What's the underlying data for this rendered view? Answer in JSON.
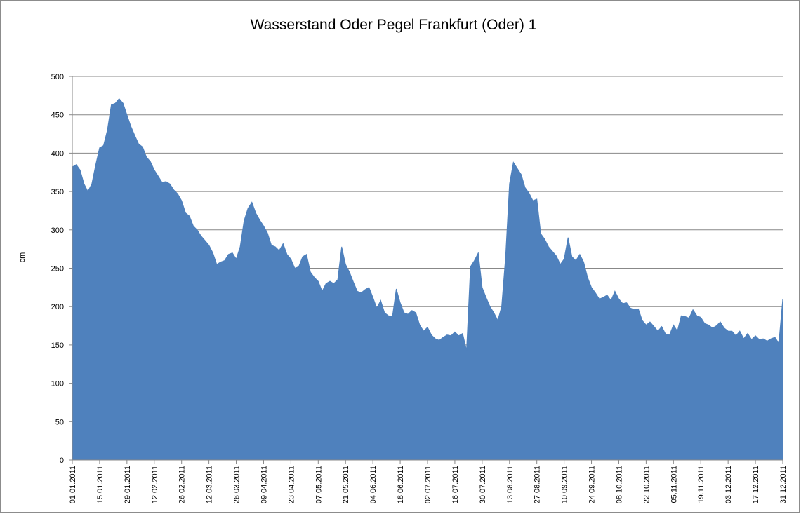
{
  "chart_data": {
    "type": "area",
    "title": "Wasserstand Oder Pegel Frankfurt (Oder) 1",
    "xlabel": "",
    "ylabel": "cm",
    "ylim": [
      0,
      500
    ],
    "yticks": [
      "0",
      "50",
      "100",
      "150",
      "200",
      "250",
      "300",
      "350",
      "400",
      "450",
      "500"
    ],
    "xlim": [
      "01.01.2011",
      "31.12.2011"
    ],
    "x_tick_labels": [
      "01.01.2011",
      "15.01.2011",
      "29.01.2011",
      "12.02.2011",
      "26.02.2011",
      "12.03.2011",
      "26.03.2011",
      "09.04.2011",
      "23.04.2011",
      "07.05.2011",
      "21.05.2011",
      "04.06.2011",
      "18.06.2011",
      "02.07.2011",
      "16.07.2011",
      "30.07.2011",
      "13.08.2011",
      "27.08.2011",
      "10.09.2011",
      "24.09.2011",
      "08.10.2011",
      "22.10.2011",
      "05.11.2011",
      "19.11.2011",
      "03.12.2011",
      "17.12.2011",
      "31.12.2011"
    ],
    "grid": "horizontal",
    "fill_color": "#4f81bd",
    "series": [
      {
        "points": [
          [
            "01.01.2011",
            382
          ],
          [
            "03.01.2011",
            385
          ],
          [
            "05.01.2011",
            378
          ],
          [
            "07.01.2011",
            360
          ],
          [
            "09.01.2011",
            350
          ],
          [
            "11.01.2011",
            360
          ],
          [
            "13.01.2011",
            385
          ],
          [
            "15.01.2011",
            407
          ],
          [
            "17.01.2011",
            410
          ],
          [
            "19.01.2011",
            430
          ],
          [
            "21.01.2011",
            463
          ],
          [
            "23.01.2011",
            465
          ],
          [
            "25.01.2011",
            471
          ],
          [
            "27.01.2011",
            465
          ],
          [
            "29.01.2011",
            450
          ],
          [
            "31.01.2011",
            435
          ],
          [
            "02.02.2011",
            423
          ],
          [
            "04.02.2011",
            412
          ],
          [
            "06.02.2011",
            408
          ],
          [
            "08.02.2011",
            395
          ],
          [
            "10.02.2011",
            389
          ],
          [
            "12.02.2011",
            378
          ],
          [
            "14.02.2011",
            370
          ],
          [
            "16.02.2011",
            362
          ],
          [
            "18.02.2011",
            363
          ],
          [
            "20.02.2011",
            360
          ],
          [
            "22.02.2011",
            352
          ],
          [
            "24.02.2011",
            347
          ],
          [
            "26.02.2011",
            338
          ],
          [
            "28.02.2011",
            322
          ],
          [
            "02.03.2011",
            318
          ],
          [
            "04.03.2011",
            305
          ],
          [
            "06.03.2011",
            300
          ],
          [
            "08.03.2011",
            292
          ],
          [
            "10.03.2011",
            286
          ],
          [
            "12.03.2011",
            280
          ],
          [
            "14.03.2011",
            270
          ],
          [
            "16.03.2011",
            255
          ],
          [
            "18.03.2011",
            258
          ],
          [
            "20.03.2011",
            260
          ],
          [
            "22.03.2011",
            268
          ],
          [
            "24.03.2011",
            270
          ],
          [
            "26.03.2011",
            262
          ],
          [
            "28.03.2011",
            278
          ],
          [
            "30.03.2011",
            312
          ],
          [
            "01.04.2011",
            328
          ],
          [
            "03.04.2011",
            336
          ],
          [
            "05.04.2011",
            322
          ],
          [
            "07.04.2011",
            313
          ],
          [
            "09.04.2011",
            305
          ],
          [
            "11.04.2011",
            296
          ],
          [
            "13.04.2011",
            280
          ],
          [
            "15.04.2011",
            278
          ],
          [
            "17.04.2011",
            273
          ],
          [
            "19.04.2011",
            282
          ],
          [
            "21.04.2011",
            268
          ],
          [
            "23.04.2011",
            262
          ],
          [
            "25.04.2011",
            250
          ],
          [
            "27.04.2011",
            252
          ],
          [
            "29.04.2011",
            265
          ],
          [
            "01.05.2011",
            268
          ],
          [
            "03.05.2011",
            245
          ],
          [
            "05.05.2011",
            238
          ],
          [
            "07.05.2011",
            233
          ],
          [
            "09.05.2011",
            220
          ],
          [
            "11.05.2011",
            230
          ],
          [
            "13.05.2011",
            233
          ],
          [
            "15.05.2011",
            230
          ],
          [
            "17.05.2011",
            235
          ],
          [
            "19.05.2011",
            278
          ],
          [
            "21.05.2011",
            255
          ],
          [
            "23.05.2011",
            245
          ],
          [
            "25.05.2011",
            232
          ],
          [
            "27.05.2011",
            220
          ],
          [
            "29.05.2011",
            218
          ],
          [
            "31.05.2011",
            222
          ],
          [
            "02.06.2011",
            225
          ],
          [
            "04.06.2011",
            212
          ],
          [
            "06.06.2011",
            198
          ],
          [
            "08.06.2011",
            208
          ],
          [
            "10.06.2011",
            192
          ],
          [
            "12.06.2011",
            188
          ],
          [
            "14.06.2011",
            187
          ],
          [
            "16.06.2011",
            223
          ],
          [
            "18.06.2011",
            205
          ],
          [
            "20.06.2011",
            192
          ],
          [
            "22.06.2011",
            190
          ],
          [
            "24.06.2011",
            195
          ],
          [
            "26.06.2011",
            192
          ],
          [
            "28.06.2011",
            176
          ],
          [
            "30.06.2011",
            168
          ],
          [
            "02.07.2011",
            173
          ],
          [
            "04.07.2011",
            163
          ],
          [
            "06.07.2011",
            158
          ],
          [
            "08.07.2011",
            156
          ],
          [
            "10.07.2011",
            160
          ],
          [
            "12.07.2011",
            163
          ],
          [
            "14.07.2011",
            162
          ],
          [
            "16.07.2011",
            167
          ],
          [
            "18.07.2011",
            162
          ],
          [
            "20.07.2011",
            165
          ],
          [
            "22.07.2011",
            143
          ],
          [
            "24.07.2011",
            252
          ],
          [
            "26.07.2011",
            260
          ],
          [
            "28.07.2011",
            270
          ],
          [
            "30.07.2011",
            225
          ],
          [
            "01.08.2011",
            212
          ],
          [
            "03.08.2011",
            200
          ],
          [
            "05.08.2011",
            192
          ],
          [
            "07.08.2011",
            182
          ],
          [
            "09.08.2011",
            200
          ],
          [
            "11.08.2011",
            265
          ],
          [
            "13.08.2011",
            360
          ],
          [
            "15.08.2011",
            388
          ],
          [
            "17.08.2011",
            380
          ],
          [
            "19.08.2011",
            372
          ],
          [
            "21.08.2011",
            355
          ],
          [
            "23.08.2011",
            348
          ],
          [
            "25.08.2011",
            338
          ],
          [
            "27.08.2011",
            340
          ],
          [
            "29.08.2011",
            295
          ],
          [
            "31.08.2011",
            288
          ],
          [
            "02.09.2011",
            278
          ],
          [
            "04.09.2011",
            272
          ],
          [
            "06.09.2011",
            266
          ],
          [
            "08.09.2011",
            255
          ],
          [
            "10.09.2011",
            262
          ],
          [
            "12.09.2011",
            290
          ],
          [
            "14.09.2011",
            265
          ],
          [
            "16.09.2011",
            260
          ],
          [
            "18.09.2011",
            268
          ],
          [
            "20.09.2011",
            258
          ],
          [
            "22.09.2011",
            238
          ],
          [
            "24.09.2011",
            225
          ],
          [
            "26.09.2011",
            218
          ],
          [
            "28.09.2011",
            210
          ],
          [
            "30.09.2011",
            212
          ],
          [
            "02.10.2011",
            215
          ],
          [
            "04.10.2011",
            208
          ],
          [
            "06.10.2011",
            220
          ],
          [
            "08.10.2011",
            210
          ],
          [
            "10.10.2011",
            204
          ],
          [
            "12.10.2011",
            205
          ],
          [
            "14.10.2011",
            198
          ],
          [
            "16.10.2011",
            196
          ],
          [
            "18.10.2011",
            197
          ],
          [
            "20.10.2011",
            182
          ],
          [
            "22.10.2011",
            176
          ],
          [
            "24.10.2011",
            180
          ],
          [
            "26.10.2011",
            174
          ],
          [
            "28.10.2011",
            168
          ],
          [
            "30.10.2011",
            174
          ],
          [
            "01.11.2011",
            164
          ],
          [
            "03.11.2011",
            163
          ],
          [
            "05.11.2011",
            176
          ],
          [
            "07.11.2011",
            168
          ],
          [
            "09.11.2011",
            188
          ],
          [
            "11.11.2011",
            187
          ],
          [
            "13.11.2011",
            185
          ],
          [
            "15.11.2011",
            196
          ],
          [
            "17.11.2011",
            188
          ],
          [
            "19.11.2011",
            186
          ],
          [
            "21.11.2011",
            178
          ],
          [
            "23.11.2011",
            176
          ],
          [
            "25.11.2011",
            172
          ],
          [
            "27.11.2011",
            175
          ],
          [
            "29.11.2011",
            180
          ],
          [
            "01.12.2011",
            172
          ],
          [
            "03.12.2011",
            168
          ],
          [
            "05.12.2011",
            168
          ],
          [
            "07.12.2011",
            162
          ],
          [
            "09.12.2011",
            168
          ],
          [
            "11.12.2011",
            158
          ],
          [
            "13.12.2011",
            165
          ],
          [
            "15.12.2011",
            157
          ],
          [
            "17.12.2011",
            162
          ],
          [
            "19.12.2011",
            157
          ],
          [
            "21.12.2011",
            158
          ],
          [
            "23.12.2011",
            155
          ],
          [
            "25.12.2011",
            158
          ],
          [
            "27.12.2011",
            160
          ],
          [
            "29.12.2011",
            152
          ],
          [
            "31.12.2011",
            210
          ]
        ]
      }
    ]
  }
}
